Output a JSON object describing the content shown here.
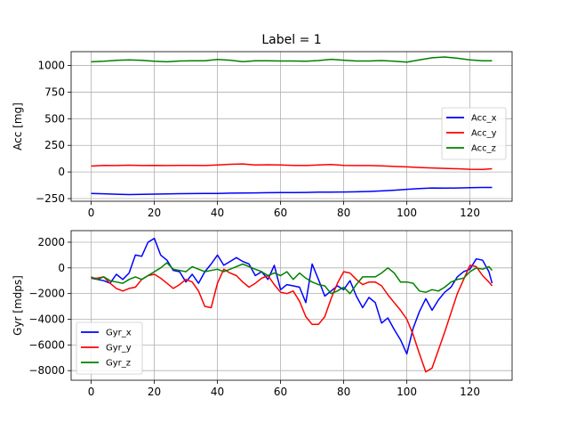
{
  "figure": {
    "title": "Label = 1"
  },
  "chart_data": [
    {
      "type": "line",
      "title": "Label = 1",
      "xlabel": "",
      "ylabel": "Acc [mg]",
      "xlim": [
        -6.35,
        133.35
      ],
      "ylim": [
        -275,
        1130
      ],
      "xticks": [
        0,
        20,
        40,
        60,
        80,
        100,
        120
      ],
      "yticks": [
        -250,
        0,
        250,
        500,
        750,
        1000
      ],
      "xtick_labels": [
        "0",
        "20",
        "40",
        "60",
        "80",
        "100",
        "120"
      ],
      "ytick_labels": [
        "−250",
        "0",
        "250",
        "500",
        "750",
        "1000"
      ],
      "grid": true,
      "legend_position": "center right",
      "x": [
        0,
        4,
        8,
        12,
        16,
        20,
        24,
        28,
        32,
        36,
        40,
        44,
        48,
        52,
        56,
        60,
        64,
        68,
        72,
        76,
        80,
        84,
        88,
        92,
        96,
        100,
        104,
        108,
        112,
        116,
        120,
        124,
        127
      ],
      "series": [
        {
          "name": "Acc_x",
          "color": "#0000ff",
          "values": [
            -201,
            -205,
            -209,
            -212,
            -210,
            -208,
            -206,
            -204,
            -203,
            -202,
            -201,
            -199,
            -197,
            -196,
            -195,
            -194,
            -193,
            -192,
            -190,
            -189,
            -188,
            -186,
            -183,
            -178,
            -171,
            -163,
            -155,
            -150,
            -152,
            -150,
            -147,
            -145,
            -145
          ]
        },
        {
          "name": "Acc_y",
          "color": "#ff0000",
          "values": [
            55,
            62,
            60,
            64,
            60,
            62,
            60,
            62,
            62,
            60,
            65,
            72,
            75,
            65,
            68,
            65,
            62,
            60,
            66,
            70,
            62,
            60,
            60,
            58,
            52,
            48,
            42,
            38,
            34,
            30,
            25,
            24,
            30
          ]
        },
        {
          "name": "Acc_z",
          "color": "#008000",
          "values": [
            1035,
            1040,
            1048,
            1052,
            1048,
            1040,
            1035,
            1042,
            1045,
            1044,
            1056,
            1050,
            1036,
            1044,
            1045,
            1042,
            1042,
            1040,
            1046,
            1058,
            1050,
            1042,
            1042,
            1046,
            1040,
            1032,
            1052,
            1072,
            1080,
            1068,
            1052,
            1045,
            1045
          ]
        }
      ]
    },
    {
      "type": "line",
      "title": "",
      "xlabel": "",
      "ylabel": "Gyr [mdps]",
      "xlim": [
        -6.35,
        133.35
      ],
      "ylim": [
        -8750,
        2900
      ],
      "xticks": [
        0,
        20,
        40,
        60,
        80,
        100,
        120
      ],
      "yticks": [
        -8000,
        -6000,
        -4000,
        -2000,
        0,
        2000
      ],
      "xtick_labels": [
        "0",
        "20",
        "40",
        "60",
        "80",
        "100",
        "120"
      ],
      "ytick_labels": [
        "−8000",
        "−6000",
        "−4000",
        "−2000",
        "0",
        "2000"
      ],
      "grid": true,
      "legend_position": "lower left",
      "x": [
        0,
        2,
        4,
        6,
        8,
        10,
        12,
        14,
        16,
        18,
        20,
        22,
        24,
        26,
        28,
        30,
        32,
        34,
        36,
        38,
        40,
        42,
        44,
        46,
        48,
        50,
        52,
        54,
        56,
        58,
        60,
        62,
        64,
        66,
        68,
        70,
        72,
        74,
        76,
        78,
        80,
        82,
        84,
        86,
        88,
        90,
        92,
        94,
        96,
        98,
        100,
        102,
        104,
        106,
        108,
        110,
        112,
        114,
        116,
        118,
        120,
        122,
        124,
        126,
        127
      ],
      "series": [
        {
          "name": "Gyr_x",
          "color": "#0000ff",
          "values": [
            -800,
            -900,
            -1000,
            -1200,
            -500,
            -900,
            -400,
            1000,
            900,
            2000,
            2300,
            1000,
            600,
            -200,
            -300,
            -1100,
            -500,
            -1200,
            -300,
            300,
            1000,
            200,
            500,
            800,
            500,
            300,
            -600,
            -300,
            -900,
            200,
            -1700,
            -1300,
            -1400,
            -1500,
            -2700,
            300,
            -900,
            -2200,
            -1800,
            -1400,
            -1700,
            -1000,
            -2200,
            -3100,
            -2300,
            -2700,
            -4300,
            -3900,
            -4800,
            -5600,
            -6700,
            -4700,
            -3400,
            -2400,
            -3300,
            -2500,
            -1900,
            -1500,
            -700,
            -300,
            -100,
            700,
            600,
            -300,
            -1200
          ]
        },
        {
          "name": "Gyr_y",
          "color": "#ff0000",
          "values": [
            -800,
            -800,
            -700,
            -1200,
            -1600,
            -1800,
            -1600,
            -1500,
            -900,
            -600,
            -500,
            -800,
            -1200,
            -1600,
            -1300,
            -900,
            -1100,
            -1800,
            -3000,
            -3100,
            -1200,
            -100,
            -400,
            -600,
            -1100,
            -1500,
            -1200,
            -800,
            -600,
            -1300,
            -1900,
            -2000,
            -1800,
            -2600,
            -3800,
            -4400,
            -4400,
            -3800,
            -2400,
            -1200,
            -300,
            -400,
            -900,
            -1300,
            -1100,
            -1100,
            -1400,
            -2100,
            -2700,
            -3300,
            -4000,
            -5200,
            -6700,
            -8100,
            -7800,
            -6400,
            -5000,
            -3500,
            -2000,
            -900,
            200,
            100,
            -600,
            -1100,
            -1400
          ]
        },
        {
          "name": "Gyr_z",
          "color": "#008000",
          "values": [
            -700,
            -900,
            -700,
            -1000,
            -1100,
            -1200,
            -900,
            -700,
            -900,
            -600,
            -300,
            0,
            400,
            -100,
            -200,
            -300,
            100,
            -100,
            -300,
            -200,
            -100,
            -300,
            -100,
            100,
            300,
            100,
            -100,
            -300,
            -600,
            -400,
            -600,
            -300,
            -900,
            -400,
            -800,
            -1100,
            -1300,
            -1400,
            -2000,
            -1800,
            -1500,
            -2000,
            -1300,
            -700,
            -700,
            -700,
            -400,
            0,
            -400,
            -1100,
            -1100,
            -1200,
            -1800,
            -1900,
            -1700,
            -1800,
            -1500,
            -1100,
            -900,
            -800,
            -300,
            0,
            -100,
            100,
            -200
          ]
        }
      ]
    }
  ]
}
